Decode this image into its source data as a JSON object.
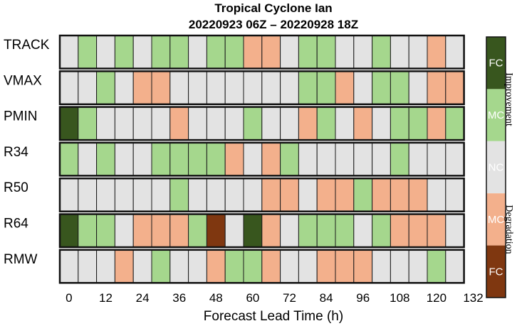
{
  "chart_data": {
    "type": "heatmap",
    "title": "Tropical Cyclone Ian",
    "subtitle": "20220923 06Z – 20220928 18Z",
    "xlabel": "Forecast Lead Time (h)",
    "x_ticks": [
      "0",
      "12",
      "24",
      "36",
      "48",
      "60",
      "72",
      "84",
      "96",
      "108",
      "120",
      "132"
    ],
    "x_tick_hours": [
      0,
      12,
      24,
      36,
      48,
      60,
      72,
      84,
      96,
      108,
      120,
      132
    ],
    "x_range_hours": [
      0,
      132
    ],
    "cell_step_hours": 6,
    "rows": [
      "TRACK",
      "VMAX",
      "PMIN",
      "R34",
      "R50",
      "R64",
      "RMW"
    ],
    "legend": {
      "categories": [
        "FC",
        "MC",
        "NC",
        "MC",
        "FC"
      ],
      "colors": [
        "#38561e",
        "#a5d78d",
        "#e3e3e3",
        "#f3b08c",
        "#7f3710"
      ],
      "top_label": "Improvement",
      "bottom_label": "Degradation"
    },
    "category_scale": {
      "2": "FC improvement",
      "1": "MC improvement",
      "0": "NC",
      "-1": "MC degradation",
      "-2": "FC degradation"
    },
    "values": [
      [
        0,
        1,
        0,
        1,
        0,
        1,
        1,
        0,
        1,
        1,
        -1,
        -1,
        0,
        1,
        1,
        0,
        0,
        1,
        0,
        0,
        -1,
        0
      ],
      [
        0,
        0,
        1,
        0,
        -1,
        -1,
        0,
        0,
        0,
        0,
        0,
        0,
        0,
        1,
        1,
        -1,
        0,
        1,
        1,
        0,
        -1,
        -1
      ],
      [
        2,
        1,
        0,
        0,
        0,
        0,
        -1,
        0,
        0,
        0,
        1,
        0,
        0,
        -1,
        1,
        0,
        -1,
        0,
        1,
        1,
        -1,
        1
      ],
      [
        1,
        0,
        1,
        0,
        0,
        1,
        1,
        1,
        1,
        -1,
        0,
        -1,
        1,
        0,
        0,
        0,
        0,
        0,
        1,
        0,
        0,
        0
      ],
      [
        0,
        0,
        0,
        0,
        0,
        0,
        1,
        0,
        0,
        0,
        0,
        -1,
        -1,
        0,
        -1,
        -1,
        1,
        -1,
        -1,
        -1,
        0,
        0
      ],
      [
        2,
        1,
        1,
        0,
        -1,
        -1,
        -1,
        1,
        -2,
        0,
        2,
        -1,
        0,
        1,
        1,
        1,
        0,
        1,
        -1,
        -1,
        -1,
        0
      ],
      [
        0,
        0,
        0,
        -1,
        0,
        1,
        0,
        0,
        -1,
        1,
        1,
        -1,
        0,
        0,
        -1,
        -1,
        -1,
        0,
        0,
        0,
        1,
        0
      ]
    ]
  }
}
